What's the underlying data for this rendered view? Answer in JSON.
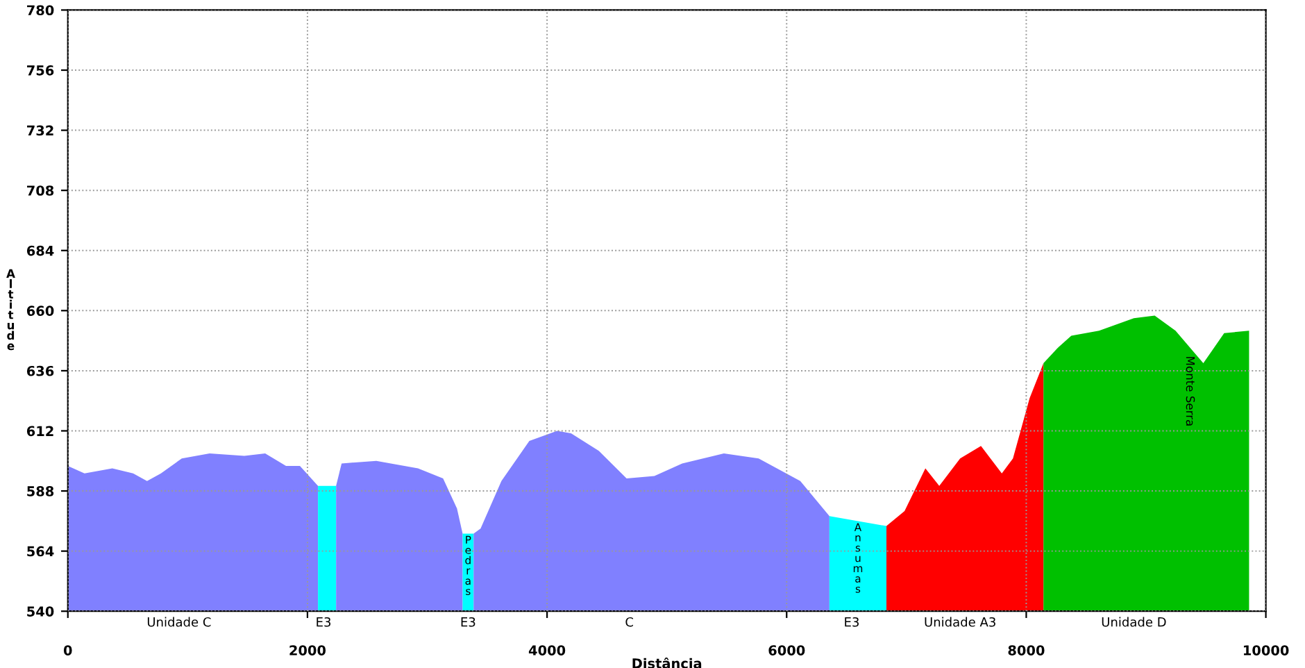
{
  "chart_data": {
    "type": "area",
    "xlabel": "Distância",
    "ylabel": "Altitude",
    "xlim": [
      0,
      10000
    ],
    "xticks": [
      0,
      2000,
      4000,
      6000,
      8000,
      10000
    ],
    "ylim": [
      540,
      780
    ],
    "yticks": [
      540,
      564,
      588,
      612,
      636,
      660,
      684,
      708,
      732,
      756,
      780
    ],
    "grid": true,
    "line_style": "dotted",
    "series": [
      {
        "color": "#8080ff",
        "x": [
          0,
          139,
          371,
          545,
          661,
          777,
          951,
          1183,
          1473,
          1647,
          1821,
          1937,
          2088
        ],
        "values": [
          598,
          595,
          597,
          595,
          592,
          595,
          601,
          603,
          602,
          603,
          598,
          598,
          590
        ]
      },
      {
        "color": "#00ffff",
        "x": [
          2088,
          2239
        ],
        "values": [
          590,
          590
        ]
      },
      {
        "color": "#8080ff",
        "x": [
          2239,
          2285,
          2575,
          2923,
          3132,
          3248,
          3295
        ],
        "values": [
          590,
          599,
          600,
          597,
          593,
          581,
          571
        ]
      },
      {
        "color": "#00ffff",
        "x": [
          3295,
          3387
        ],
        "values": [
          571,
          571
        ]
      },
      {
        "color": "#8080ff",
        "x": [
          3387,
          3445,
          3619,
          3852,
          4084,
          4200,
          4432,
          4664,
          4896,
          5128,
          5476,
          5766,
          6114,
          6357
        ],
        "values": [
          571,
          573,
          592,
          608,
          612,
          611,
          604,
          593,
          594,
          599,
          603,
          601,
          592,
          578
        ]
      },
      {
        "color": "#00ffff",
        "x": [
          6357,
          6833
        ],
        "values": [
          578,
          574
        ]
      },
      {
        "color": "#ff0000",
        "x": [
          6833,
          6984,
          7158,
          7274,
          7448,
          7622,
          7796,
          7889,
          8028,
          8144
        ],
        "values": [
          574,
          580,
          597,
          590,
          601,
          606,
          595,
          601,
          625,
          639
        ]
      },
      {
        "color": "#00c000",
        "x": [
          8144,
          8260,
          8376,
          8608,
          8898,
          9072,
          9246,
          9478,
          9652,
          9860
        ],
        "values": [
          639,
          645,
          650,
          652,
          657,
          658,
          652,
          639,
          651,
          652
        ]
      }
    ],
    "annotations": [
      {
        "text": "Unidade C",
        "x": 928,
        "y": 540
      },
      {
        "text": "E3",
        "x": 2134,
        "y": 540
      },
      {
        "text": "E3",
        "x": 3341,
        "y": 540
      },
      {
        "text": "C",
        "x": 4687,
        "y": 540
      },
      {
        "text": "E3",
        "x": 6543,
        "y": 540
      },
      {
        "text": "Unidade A3",
        "x": 7448,
        "y": 540
      },
      {
        "text": "Unidade D",
        "x": 8898,
        "y": 540
      },
      {
        "text": "Pedras",
        "x": 3341,
        "y": 571
      },
      {
        "text": "Ansumas",
        "x": 6595,
        "y": 576
      },
      {
        "text": "Monte Serra",
        "x": 9362,
        "y": 645
      }
    ]
  }
}
